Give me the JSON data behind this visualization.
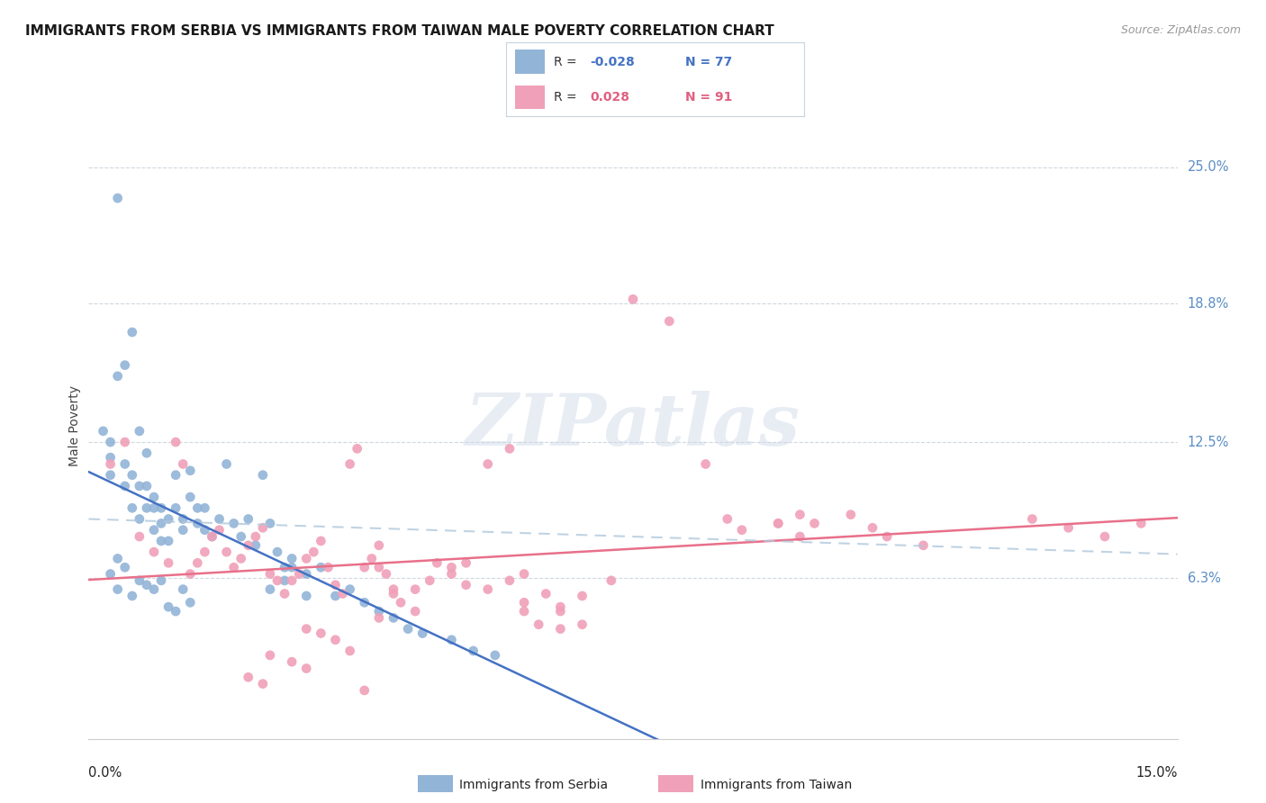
{
  "title": "IMMIGRANTS FROM SERBIA VS IMMIGRANTS FROM TAIWAN MALE POVERTY CORRELATION CHART",
  "source": "Source: ZipAtlas.com",
  "ylabel": "Male Poverty",
  "ytick_vals": [
    0.063,
    0.125,
    0.188,
    0.25
  ],
  "ytick_labels": [
    "6.3%",
    "12.5%",
    "18.8%",
    "25.0%"
  ],
  "xlim": [
    0.0,
    0.15
  ],
  "ylim": [
    -0.01,
    0.275
  ],
  "serbia_color": "#92b4d7",
  "taiwan_color": "#f0a0b8",
  "serbia_line_color": "#4472c4",
  "taiwan_line_color": "#e8708a",
  "dash_color": "#b0c8dc",
  "serbia_R": "-0.028",
  "serbia_N": "77",
  "taiwan_R": "0.028",
  "taiwan_N": "91",
  "serbia_x": [
    0.004,
    0.002,
    0.003,
    0.003,
    0.003,
    0.004,
    0.005,
    0.005,
    0.005,
    0.006,
    0.006,
    0.006,
    0.007,
    0.007,
    0.007,
    0.008,
    0.008,
    0.008,
    0.009,
    0.009,
    0.009,
    0.01,
    0.01,
    0.01,
    0.011,
    0.011,
    0.012,
    0.012,
    0.013,
    0.013,
    0.014,
    0.014,
    0.015,
    0.015,
    0.016,
    0.016,
    0.017,
    0.018,
    0.019,
    0.02,
    0.021,
    0.022,
    0.023,
    0.024,
    0.025,
    0.026,
    0.027,
    0.028,
    0.03,
    0.032,
    0.034,
    0.036,
    0.038,
    0.04,
    0.042,
    0.044,
    0.046,
    0.05,
    0.053,
    0.056,
    0.003,
    0.004,
    0.004,
    0.005,
    0.006,
    0.007,
    0.008,
    0.009,
    0.01,
    0.011,
    0.012,
    0.013,
    0.014,
    0.025,
    0.027,
    0.028,
    0.03
  ],
  "serbia_y": [
    0.236,
    0.13,
    0.118,
    0.11,
    0.125,
    0.155,
    0.115,
    0.105,
    0.16,
    0.11,
    0.095,
    0.175,
    0.13,
    0.09,
    0.105,
    0.095,
    0.105,
    0.12,
    0.085,
    0.095,
    0.1,
    0.08,
    0.088,
    0.095,
    0.09,
    0.08,
    0.11,
    0.095,
    0.085,
    0.09,
    0.112,
    0.1,
    0.088,
    0.095,
    0.085,
    0.095,
    0.082,
    0.09,
    0.115,
    0.088,
    0.082,
    0.09,
    0.078,
    0.11,
    0.088,
    0.075,
    0.068,
    0.072,
    0.065,
    0.068,
    0.055,
    0.058,
    0.052,
    0.048,
    0.045,
    0.04,
    0.038,
    0.035,
    0.03,
    0.028,
    0.065,
    0.058,
    0.072,
    0.068,
    0.055,
    0.062,
    0.06,
    0.058,
    0.062,
    0.05,
    0.048,
    0.058,
    0.052,
    0.058,
    0.062,
    0.068,
    0.055
  ],
  "taiwan_x": [
    0.003,
    0.005,
    0.007,
    0.009,
    0.011,
    0.012,
    0.013,
    0.014,
    0.015,
    0.016,
    0.017,
    0.018,
    0.019,
    0.02,
    0.021,
    0.022,
    0.023,
    0.024,
    0.025,
    0.026,
    0.027,
    0.028,
    0.029,
    0.03,
    0.031,
    0.032,
    0.033,
    0.034,
    0.035,
    0.036,
    0.037,
    0.038,
    0.039,
    0.04,
    0.041,
    0.042,
    0.043,
    0.045,
    0.047,
    0.05,
    0.052,
    0.055,
    0.058,
    0.06,
    0.063,
    0.065,
    0.068,
    0.072,
    0.075,
    0.08,
    0.085,
    0.088,
    0.09,
    0.095,
    0.098,
    0.1,
    0.105,
    0.108,
    0.11,
    0.115,
    0.048,
    0.05,
    0.052,
    0.055,
    0.058,
    0.06,
    0.065,
    0.068,
    0.095,
    0.098,
    0.04,
    0.042,
    0.045,
    0.03,
    0.032,
    0.034,
    0.036,
    0.025,
    0.028,
    0.03,
    0.022,
    0.024,
    0.038,
    0.04,
    0.06,
    0.062,
    0.065,
    0.13,
    0.135,
    0.14,
    0.145
  ],
  "taiwan_y": [
    0.115,
    0.125,
    0.082,
    0.075,
    0.07,
    0.125,
    0.115,
    0.065,
    0.07,
    0.075,
    0.082,
    0.085,
    0.075,
    0.068,
    0.072,
    0.078,
    0.082,
    0.086,
    0.065,
    0.062,
    0.056,
    0.062,
    0.065,
    0.072,
    0.075,
    0.08,
    0.068,
    0.06,
    0.056,
    0.115,
    0.122,
    0.068,
    0.072,
    0.078,
    0.065,
    0.056,
    0.052,
    0.058,
    0.062,
    0.068,
    0.07,
    0.115,
    0.122,
    0.065,
    0.056,
    0.05,
    0.055,
    0.062,
    0.19,
    0.18,
    0.115,
    0.09,
    0.085,
    0.088,
    0.092,
    0.088,
    0.092,
    0.086,
    0.082,
    0.078,
    0.07,
    0.065,
    0.06,
    0.058,
    0.062,
    0.052,
    0.048,
    0.042,
    0.088,
    0.082,
    0.068,
    0.058,
    0.048,
    0.04,
    0.038,
    0.035,
    0.03,
    0.028,
    0.025,
    0.022,
    0.018,
    0.015,
    0.012,
    0.045,
    0.048,
    0.042,
    0.04,
    0.09,
    0.086,
    0.082,
    0.088
  ]
}
